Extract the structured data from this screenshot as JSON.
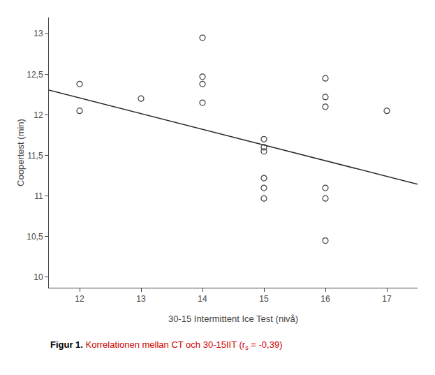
{
  "chart_data": {
    "type": "scatter",
    "xlabel": "30-15 Intermittent Ice Test (nivå)",
    "ylabel": "Coopertest (min)",
    "series": [
      {
        "type": "scatter",
        "x": [
          12,
          12,
          13,
          14,
          14,
          14,
          14,
          15,
          15,
          15,
          15,
          15,
          15,
          16,
          16,
          16,
          16,
          16,
          16,
          17
        ],
        "values": [
          12.38,
          12.05,
          12.2,
          12.95,
          12.47,
          12.38,
          12.15,
          11.7,
          11.6,
          11.22,
          11.1,
          10.97,
          11.55,
          12.45,
          12.22,
          12.1,
          11.1,
          10.97,
          10.45,
          12.05
        ],
        "color": "#404040",
        "marker": "circle-open"
      },
      {
        "type": "line",
        "x": [
          11.5,
          17.5
        ],
        "values": [
          12.305,
          11.145
        ],
        "color": "#2a2a2a",
        "line_style": "solid"
      }
    ],
    "xlim": [
      11.5,
      17.5
    ],
    "ylim": [
      9.87,
      13.2
    ],
    "xticks": [
      12,
      13,
      14,
      15,
      16,
      17
    ],
    "yticks": [
      10,
      {
        "value": 10.5,
        "label": "10,5"
      },
      11,
      {
        "value": 11.5,
        "label": "11,5"
      },
      12,
      {
        "value": 12.5,
        "label": "12,5"
      },
      13
    ],
    "grid": false,
    "annotations": [
      {
        "text": "Figur 1.",
        "color": "#000000"
      },
      {
        "text": " Korrelationen mellan CT och 30-15IIT (r",
        "color": "#cc0000"
      },
      {
        "text": "s",
        "color": "#cc0000"
      },
      {
        "text": " = -0,39)",
        "color": "#cc0000"
      }
    ]
  }
}
